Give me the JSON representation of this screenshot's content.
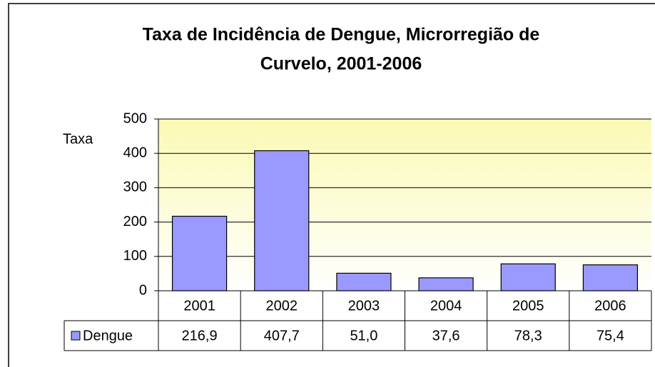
{
  "chart_data": {
    "type": "bar",
    "title": [
      "Taxa de Incidência de Dengue, Microrregião de",
      "Curvelo, 2001-2006"
    ],
    "y_label": "Taxa",
    "categories": [
      "2001",
      "2002",
      "2003",
      "2004",
      "2005",
      "2006"
    ],
    "series": [
      {
        "name": "Dengue",
        "color": "#9999ff",
        "values": [
          216.9,
          407.7,
          51.0,
          37.6,
          78.3,
          75.4
        ],
        "value_labels": [
          "216,9",
          "407,7",
          "51,0",
          "37,6",
          "78,3",
          "75,4"
        ]
      }
    ],
    "ylim": [
      0,
      500
    ],
    "yticks": [
      0,
      100,
      200,
      300,
      400,
      500
    ],
    "grid": true,
    "data_table": true
  }
}
